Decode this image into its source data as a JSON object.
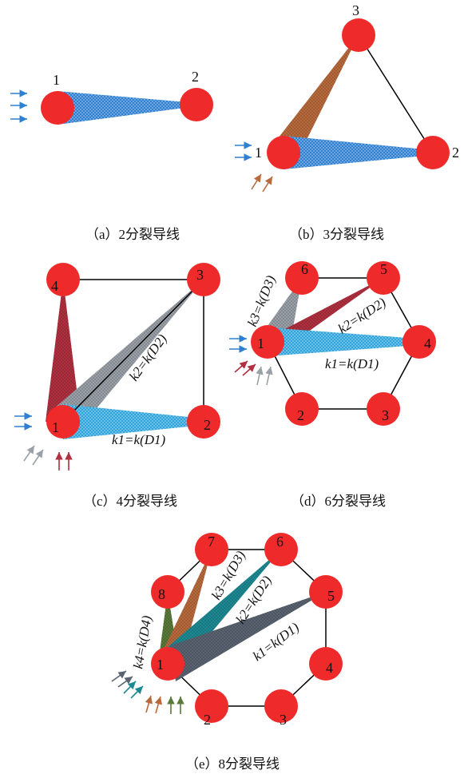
{
  "colors": {
    "conductor": "#ee2a2a",
    "blue": "#2f80d0",
    "brown": "#b86a3c",
    "maroon": "#b03040",
    "gray": "#9aa0a8",
    "teal": "#1d8a93",
    "slate": "#596371",
    "olive": "#5a7a3a",
    "outline": "#000000"
  },
  "panels": {
    "a": {
      "caption": "（a）2分裂导线",
      "nodes": [
        "1",
        "2"
      ]
    },
    "b": {
      "caption": "（b）3分裂导线",
      "nodes": [
        "1",
        "2",
        "3"
      ]
    },
    "c": {
      "caption": "（c）4分裂导线",
      "nodes": [
        "1",
        "2",
        "3",
        "4"
      ],
      "labels": [
        "k1=k(D1)",
        "k2=k(D2)"
      ]
    },
    "d": {
      "caption": "（d）6分裂导线",
      "nodes": [
        "1",
        "2",
        "3",
        "4",
        "5",
        "6"
      ],
      "labels": [
        "k1=k(D1)",
        "k2=k(D2)",
        "k3=k(D3)"
      ]
    },
    "e": {
      "caption": "（e）8分裂导线",
      "nodes": [
        "1",
        "2",
        "3",
        "4",
        "5",
        "6",
        "7",
        "8"
      ],
      "labels": [
        "k1=k(D1)",
        "k2=k(D2)",
        "k3=k(D3)",
        "k4=k(D4)"
      ]
    }
  }
}
